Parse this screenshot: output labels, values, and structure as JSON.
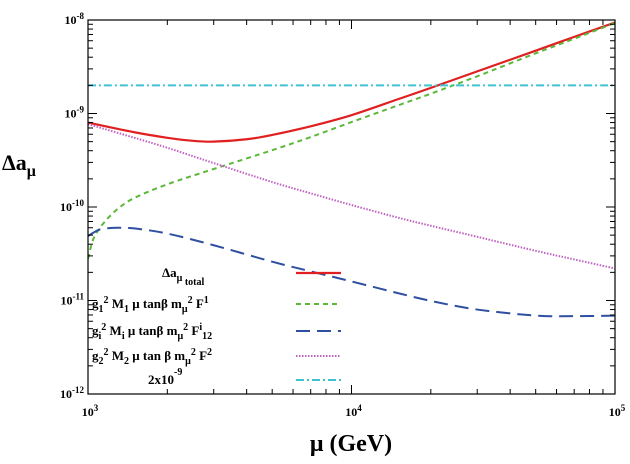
{
  "chart_data": {
    "type": "line",
    "xscale": "log",
    "yscale": "log",
    "xlim": [
      1000,
      100000
    ],
    "ylim": [
      1e-12,
      1e-08
    ],
    "xlabel": "μ (GeV)",
    "ylabel": "Δaμ",
    "grid": false,
    "legend_position": "bottom-left",
    "x_ticks": [
      {
        "value": 1000,
        "base": "10",
        "exp": "3"
      },
      {
        "value": 10000,
        "base": "10",
        "exp": "4"
      },
      {
        "value": 100000,
        "base": "10",
        "exp": "5"
      }
    ],
    "y_ticks": [
      {
        "value": 1e-12,
        "base": "10",
        "exp": "-12"
      },
      {
        "value": 1e-11,
        "base": "10",
        "exp": "-11"
      },
      {
        "value": 1e-10,
        "base": "10",
        "exp": "-10"
      },
      {
        "value": 1e-09,
        "base": "10",
        "exp": "-9"
      },
      {
        "value": 1e-08,
        "base": "10",
        "exp": "-8"
      }
    ],
    "series": [
      {
        "name": "Δaμ total",
        "legend": [
          "Δa",
          "μ",
          "",
          "",
          "  total"
        ],
        "color": "#e02020",
        "dash": "",
        "width": 2.2,
        "x": [
          1000,
          1500,
          2000,
          2500,
          3000,
          4000,
          5000,
          7000,
          10000,
          15000,
          20000,
          30000,
          50000,
          70000,
          100000
        ],
        "y": [
          8e-10,
          6.3e-10,
          5.5e-10,
          5.1e-10,
          5e-10,
          5.3e-10,
          5.9e-10,
          7.3e-10,
          9.6e-10,
          1.42e-09,
          1.88e-09,
          2.82e-09,
          4.7e-09,
          6.6e-09,
          9.4e-09
        ]
      },
      {
        "name": "g1² M1 μ tanβ mμ² F1",
        "legend": [
          "g",
          "1",
          "2",
          " M",
          "1",
          " μ tanβ m",
          "μ",
          "2",
          " F",
          "1"
        ],
        "color": "#5cb83a",
        "dash": "5,4",
        "width": 2.0,
        "x": [
          1000,
          1050,
          1150,
          1300,
          1500,
          2000,
          3000,
          5000,
          7000,
          10000,
          15000,
          20000,
          30000,
          50000,
          70000,
          100000
        ],
        "y": [
          2.8e-11,
          4.6e-11,
          6.8e-11,
          9.6e-11,
          1.25e-10,
          1.75e-10,
          2.55e-10,
          4.05e-10,
          5.6e-10,
          8.1e-10,
          1.22e-09,
          1.63e-09,
          2.5e-09,
          4.4e-09,
          6.3e-09,
          9.3e-09
        ]
      },
      {
        "name": "gi² Mi μ tanβ mμ² Fi12",
        "legend": [
          "g",
          "i",
          "2",
          " M",
          "i",
          " μ tanβ m",
          "μ",
          "2",
          " F",
          "i",
          "12"
        ],
        "color": "#2f4fa0",
        "dash": "14,7",
        "width": 2.0,
        "x": [
          1000,
          1100,
          1200,
          1300,
          1500,
          2000,
          3000,
          5000,
          7000,
          10000,
          15000,
          20000,
          30000,
          50000,
          70000,
          100000
        ],
        "y": [
          4.9e-11,
          5.7e-11,
          5.95e-11,
          6e-11,
          5.9e-11,
          5.2e-11,
          3.9e-11,
          2.6e-11,
          2.05e-11,
          1.6e-11,
          1.2e-11,
          9.9e-12,
          8e-12,
          6.9e-12,
          6.8e-12,
          6.9e-12
        ]
      },
      {
        "name": "g2² M2 μ tan β mμ² F2",
        "legend": [
          "g",
          "2",
          "2",
          " M",
          "2",
          " μ tan β m",
          "μ",
          "2",
          " F",
          "2"
        ],
        "color": "#c060c0",
        "dash": "1.5,1.5",
        "width": 2.0,
        "x": [
          1000,
          1500,
          2000,
          3000,
          5000,
          7000,
          10000,
          15000,
          20000,
          30000,
          50000,
          70000,
          100000
        ],
        "y": [
          7.7e-10,
          5.5e-10,
          4.3e-10,
          2.95e-10,
          1.85e-10,
          1.4e-10,
          1.05e-10,
          7.7e-11,
          6.3e-11,
          4.8e-11,
          3.4e-11,
          2.75e-11,
          2.2e-11
        ]
      },
      {
        "name": "2x10-9",
        "legend": [
          "2x10",
          "",
          "-9"
        ],
        "color": "#3cc4d4",
        "dash": "8,3,2,3",
        "width": 2.0,
        "x": [
          1000,
          100000
        ],
        "y": [
          2e-09,
          2e-09
        ]
      }
    ]
  }
}
